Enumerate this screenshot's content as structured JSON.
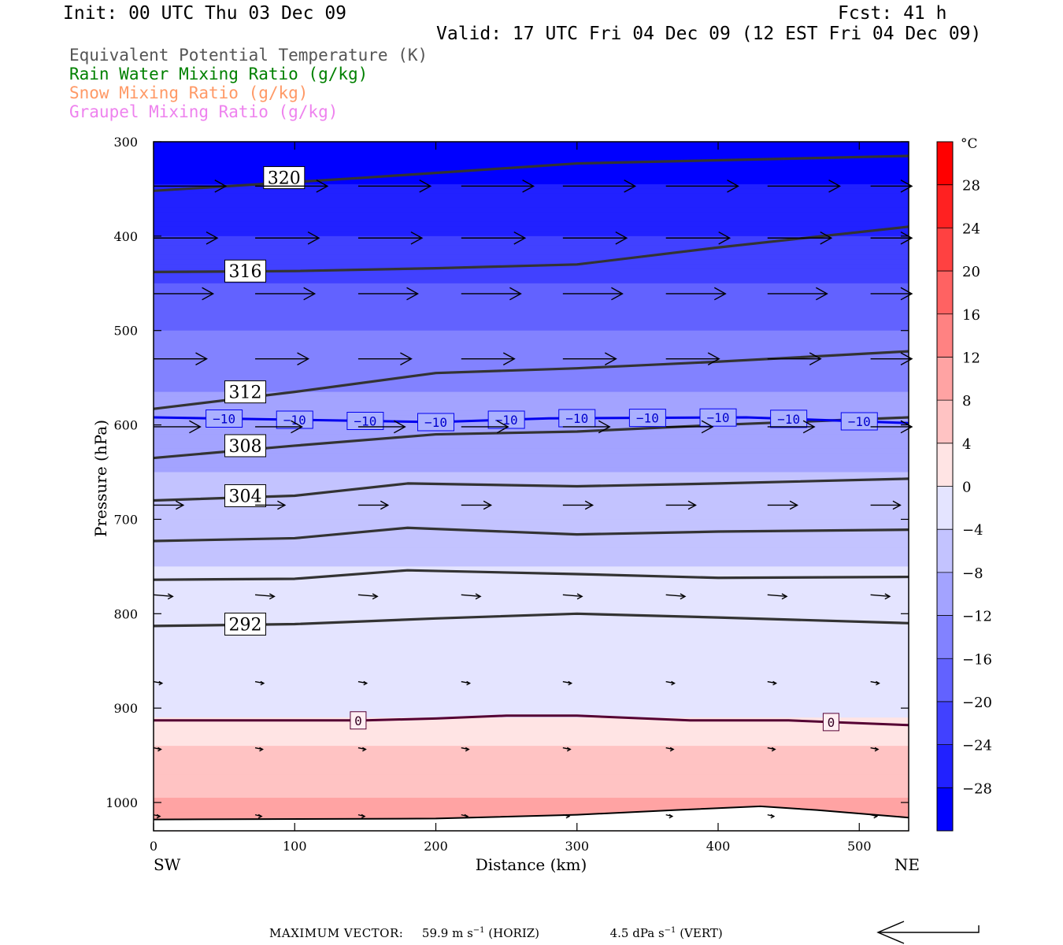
{
  "header": {
    "init": "Init: 00 UTC Thu 03 Dec 09",
    "fcst": "Fcst:   41 h",
    "valid": "Valid: 17 UTC Fri 04 Dec 09 (12 EST Fri 04 Dec 09)"
  },
  "legend": [
    {
      "label": "Equivalent Potential Temperature (K)",
      "color": "#555555"
    },
    {
      "label": "Rain Water Mixing Ratio (g/kg)",
      "color": "#008000"
    },
    {
      "label": "Snow Mixing Ratio (g/kg)",
      "color": "#ff9966"
    },
    {
      "label": "Graupel Mixing Ratio (g/kg)",
      "color": "#ee82ee"
    }
  ],
  "axes": {
    "ylabel": "Pressure (hPa)",
    "xlabel": "Distance (km)",
    "left_end": "SW",
    "right_end": "NE"
  },
  "colorbar": {
    "unit": "°C",
    "ticks": [
      "28",
      "24",
      "20",
      "16",
      "12",
      "8",
      "4",
      "0",
      "−4",
      "−8",
      "−12",
      "−16",
      "−20",
      "−24",
      "−28"
    ]
  },
  "footer": {
    "label": "MAXIMUM VECTOR:",
    "horiz_value": "59.9 m s",
    "horiz_sup": "−1",
    "horiz_tag": "(HORIZ)",
    "vert_value": "4.5 dPa s",
    "vert_sup": "−1",
    "vert_tag": "(VERT)"
  },
  "chart_data": {
    "type": "heatmap",
    "title": "",
    "xlabel": "Distance (km)",
    "ylabel": "Pressure (hPa)",
    "xlim": [
      0,
      535
    ],
    "ylim": [
      1030,
      300
    ],
    "y_scale": "linear-inverted",
    "xticks": [
      0,
      100,
      200,
      300,
      400,
      500
    ],
    "yticks": [
      300,
      400,
      500,
      600,
      700,
      800,
      900,
      1000
    ],
    "temperature_fill_levels": [
      -28,
      -24,
      -20,
      -16,
      -12,
      -8,
      -4,
      0,
      4,
      8,
      12,
      16,
      20,
      24,
      28
    ],
    "temperature_by_pressure": [
      {
        "p": 300,
        "t": -31
      },
      {
        "p": 400,
        "t": -24
      },
      {
        "p": 500,
        "t": -16
      },
      {
        "p": 600,
        "t": -10
      },
      {
        "p": 700,
        "t": -6
      },
      {
        "p": 800,
        "t": -2
      },
      {
        "p": 900,
        "t": -1
      },
      {
        "p": 950,
        "t": 5
      },
      {
        "p": 1010,
        "t": 9
      }
    ],
    "theta_e_contours": [
      {
        "value": 320,
        "label": "320",
        "points": [
          [
            0,
            352
          ],
          [
            150,
            338
          ],
          [
            300,
            323
          ],
          [
            535,
            315
          ]
        ]
      },
      {
        "value": 316,
        "label": "316",
        "points": [
          [
            0,
            438
          ],
          [
            100,
            437
          ],
          [
            200,
            434
          ],
          [
            300,
            430
          ],
          [
            400,
            412
          ],
          [
            535,
            390
          ]
        ]
      },
      {
        "value": 312,
        "label": "312",
        "points": [
          [
            0,
            583
          ],
          [
            100,
            565
          ],
          [
            200,
            545
          ],
          [
            300,
            540
          ],
          [
            400,
            533
          ],
          [
            535,
            522
          ]
        ]
      },
      {
        "value": 308,
        "label": "308",
        "points": [
          [
            0,
            635
          ],
          [
            100,
            622
          ],
          [
            200,
            610
          ],
          [
            300,
            607
          ],
          [
            400,
            600
          ],
          [
            535,
            592
          ]
        ]
      },
      {
        "value": 304,
        "label": "304",
        "points": [
          [
            0,
            680
          ],
          [
            100,
            675
          ],
          [
            180,
            662
          ],
          [
            300,
            665
          ],
          [
            400,
            662
          ],
          [
            535,
            657
          ]
        ]
      },
      {
        "value": 300,
        "label": "",
        "points": [
          [
            0,
            723
          ],
          [
            100,
            720
          ],
          [
            180,
            709
          ],
          [
            300,
            716
          ],
          [
            400,
            713
          ],
          [
            535,
            711
          ]
        ]
      },
      {
        "value": 296,
        "label": "",
        "points": [
          [
            0,
            764
          ],
          [
            100,
            763
          ],
          [
            180,
            754
          ],
          [
            300,
            758
          ],
          [
            400,
            762
          ],
          [
            535,
            761
          ]
        ]
      },
      {
        "value": 292,
        "label": "292",
        "points": [
          [
            0,
            813
          ],
          [
            100,
            811
          ],
          [
            200,
            805
          ],
          [
            300,
            800
          ],
          [
            400,
            804
          ],
          [
            535,
            810
          ]
        ]
      }
    ],
    "temperature_contours": [
      {
        "value": -10,
        "label": "−10",
        "color": "#0000ee",
        "points": [
          [
            0,
            592
          ],
          [
            200,
            597
          ],
          [
            280,
            593
          ],
          [
            420,
            592
          ],
          [
            535,
            598
          ]
        ]
      },
      {
        "value": 0,
        "label": "0",
        "color": "#550033",
        "points": [
          [
            0,
            913
          ],
          [
            150,
            913
          ],
          [
            200,
            911
          ],
          [
            250,
            908
          ],
          [
            300,
            908
          ],
          [
            380,
            913
          ],
          [
            450,
            913
          ],
          [
            535,
            918
          ]
        ]
      }
    ],
    "terrain": [
      [
        0,
        1018
      ],
      [
        200,
        1017
      ],
      [
        300,
        1013
      ],
      [
        370,
        1008
      ],
      [
        430,
        1004
      ],
      [
        470,
        1008
      ],
      [
        535,
        1016
      ]
    ],
    "wind_rows": [
      {
        "p": 347,
        "len": 0.68
      },
      {
        "p": 402,
        "len": 0.6
      },
      {
        "p": 461,
        "len": 0.56
      },
      {
        "p": 530,
        "len": 0.5
      },
      {
        "p": 602,
        "len": 0.44
      },
      {
        "p": 685,
        "len": 0.28
      },
      {
        "p": 780,
        "len": 0.18
      },
      {
        "p": 872,
        "len": 0.08
      },
      {
        "p": 942,
        "len": 0.07
      },
      {
        "p": 1013,
        "len": 0.06
      }
    ],
    "max_vector": {
      "horizontal_m_s": 59.9,
      "vertical_dPa_s": 4.5
    }
  }
}
